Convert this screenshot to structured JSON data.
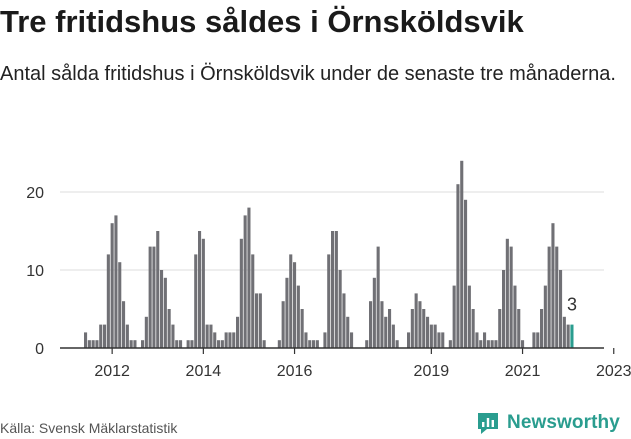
{
  "header": {
    "title": "Tre fritidshus såldes i Örnsköldsvik",
    "subtitle": "Antal sålda fritidshus i Örnsköldsvik under de senaste tre månaderna."
  },
  "footer": {
    "source": "Källa: Svensk Mäklarstatistik",
    "brand": "Newsworthy"
  },
  "colors": {
    "bar": "#707075",
    "highlight": "#2a9d8f",
    "axis": "#333333",
    "grid": "#dddddd",
    "text": "#333333"
  },
  "chart_data": {
    "type": "bar",
    "title": "Tre fritidshus såldes i Örnsköldsvik",
    "subtitle": "Antal sålda fritidshus i Örnsköldsvik under de senaste tre månaderna.",
    "xlabel": "",
    "ylabel": "",
    "ylim": [
      0,
      25
    ],
    "y_ticks": [
      0,
      10,
      20
    ],
    "x_tick_labels": [
      "2012",
      "2014",
      "2016",
      "2019",
      "2021",
      "2023"
    ],
    "x_tick_month_index": [
      7,
      31,
      55,
      91,
      115,
      139
    ],
    "start": "2011-06",
    "frequency": "monthly",
    "values": [
      2,
      1,
      1,
      1,
      3,
      3,
      12,
      16,
      17,
      11,
      6,
      3,
      1,
      1,
      0,
      1,
      4,
      13,
      13,
      15,
      10,
      9,
      5,
      3,
      1,
      1,
      0,
      1,
      1,
      12,
      15,
      14,
      3,
      3,
      2,
      1,
      1,
      2,
      2,
      2,
      4,
      14,
      17,
      18,
      12,
      7,
      7,
      1,
      0,
      0,
      0,
      1,
      6,
      9,
      12,
      11,
      8,
      5,
      2,
      1,
      1,
      1,
      0,
      2,
      12,
      15,
      15,
      10,
      7,
      4,
      2,
      0,
      0,
      0,
      1,
      6,
      9,
      13,
      6,
      4,
      5,
      3,
      1,
      0,
      0,
      2,
      5,
      7,
      6,
      5,
      4,
      3,
      3,
      2,
      2,
      0,
      1,
      8,
      21,
      24,
      19,
      8,
      5,
      2,
      1,
      2,
      1,
      1,
      1,
      5,
      10,
      14,
      13,
      8,
      5,
      1,
      0,
      0,
      2,
      2,
      5,
      8,
      13,
      16,
      13,
      10,
      4,
      3,
      3
    ],
    "highlight_last": true,
    "annotation": "3",
    "grid": true,
    "legend": "none"
  }
}
